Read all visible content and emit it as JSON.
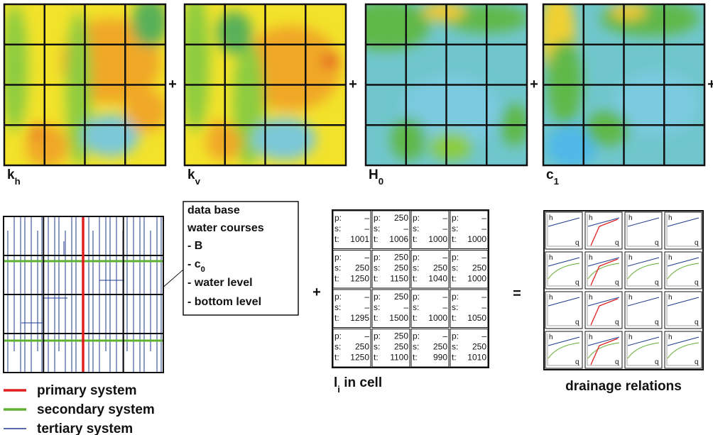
{
  "maps": [
    {
      "symbol": "k",
      "sub": "h"
    },
    {
      "symbol": "k",
      "sub": "v"
    },
    {
      "symbol": "H",
      "sub": "0"
    },
    {
      "symbol": "c",
      "sub": "1"
    }
  ],
  "operators": {
    "plus": "+",
    "equals": "="
  },
  "callout": [
    {
      "text": "data base"
    },
    {
      "text": "water courses"
    },
    {
      "text": "- B"
    },
    {
      "text": "- c",
      "sub": "0"
    },
    {
      "text": "- water level"
    },
    {
      "text": "- bottom level"
    }
  ],
  "legend": [
    {
      "label": "primary system",
      "color": "#e02020"
    },
    {
      "label": "secondary system",
      "color": "#60b030"
    },
    {
      "label": "tertiary system",
      "color": "#203890"
    }
  ],
  "table": {
    "caption": {
      "symbol": "l",
      "sub": "i",
      "text": " in cell"
    },
    "row_labels": [
      "p:",
      "s:",
      "t:"
    ],
    "rows": [
      [
        {
          "p": "–",
          "s": "–",
          "t": "1001"
        },
        {
          "p": "250",
          "s": "–",
          "t": "1006"
        },
        {
          "p": "–",
          "s": "–",
          "t": "1000"
        },
        {
          "p": "–",
          "s": "–",
          "t": "1000"
        }
      ],
      [
        {
          "p": "–",
          "s": "250",
          "t": "1250"
        },
        {
          "p": "250",
          "s": "250",
          "t": "1150"
        },
        {
          "p": "–",
          "s": "250",
          "t": "1040"
        },
        {
          "p": "–",
          "s": "250",
          "t": "1000"
        }
      ],
      [
        {
          "p": "–",
          "s": "–",
          "t": "1295"
        },
        {
          "p": "250",
          "s": "–",
          "t": "1500"
        },
        {
          "p": "–",
          "s": "–",
          "t": "1000"
        },
        {
          "p": "–",
          "s": "–",
          "t": "1050"
        }
      ],
      [
        {
          "p": "–",
          "s": "250",
          "t": "1250"
        },
        {
          "p": "250",
          "s": "250",
          "t": "1100"
        },
        {
          "p": "–",
          "s": "250",
          "t": "990"
        },
        {
          "p": "–",
          "s": "250",
          "t": "1010"
        }
      ]
    ]
  },
  "drainage_relations": {
    "title": "drainage relations",
    "y_label": "h",
    "x_label": "q"
  }
}
